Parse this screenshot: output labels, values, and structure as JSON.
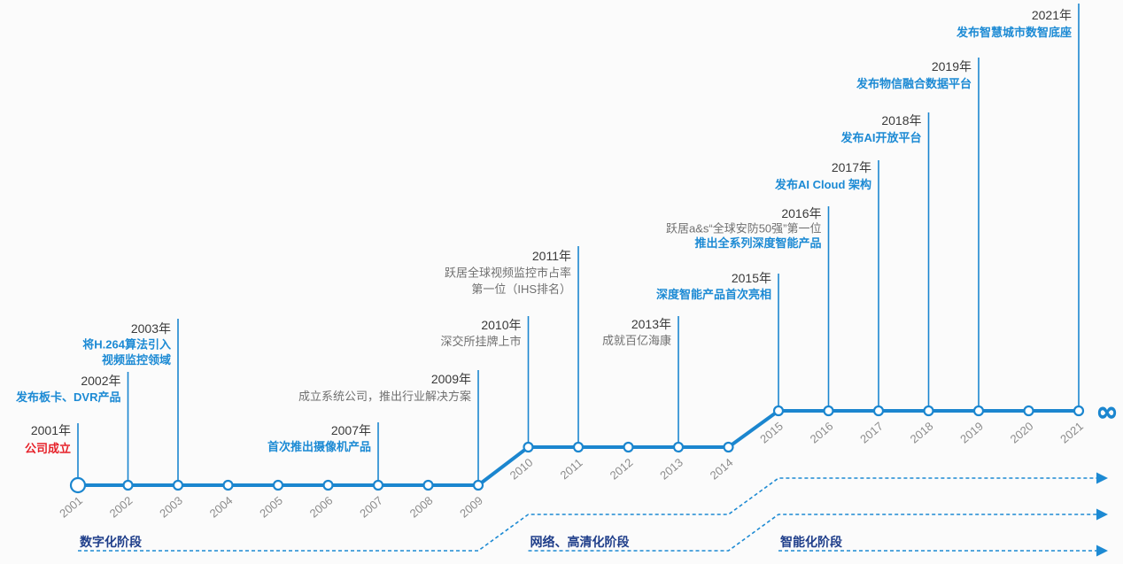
{
  "timeline": {
    "years": [
      "2001",
      "2002",
      "2003",
      "2004",
      "2005",
      "2006",
      "2007",
      "2008",
      "2009",
      "2010",
      "2011",
      "2012",
      "2013",
      "2014",
      "2015",
      "2016",
      "2017",
      "2018",
      "2019",
      "2020",
      "2021"
    ],
    "end_symbol": "∞"
  },
  "phases": [
    {
      "label": "数字化阶段",
      "from": 2001
    },
    {
      "label": "网络、高清化阶段",
      "from": 2010
    },
    {
      "label": "智能化阶段",
      "from": 2015
    }
  ],
  "events": [
    {
      "title": "2001年",
      "lines": [
        {
          "text": "公司成立",
          "color": "#e62129",
          "bold": true
        }
      ]
    },
    {
      "title": "2002年",
      "lines": [
        {
          "text": "发布板卡、DVR产品",
          "color": "#1c8ad4",
          "bold": true
        }
      ]
    },
    {
      "title": "2003年",
      "lines": [
        {
          "text": "将H.264算法引入",
          "color": "#1c8ad4",
          "bold": true
        },
        {
          "text": "视频监控领域",
          "color": "#1c8ad4",
          "bold": true
        }
      ]
    },
    {
      "title": "2007年",
      "lines": [
        {
          "text": "首次推出摄像机产品",
          "color": "#1c8ad4",
          "bold": true
        }
      ]
    },
    {
      "title": "2009年",
      "lines": [
        {
          "text": "成立系统公司，推出行业解决方案",
          "color": "#707070",
          "bold": false
        }
      ]
    },
    {
      "title": "2010年",
      "lines": [
        {
          "text": "深交所挂牌上市",
          "color": "#707070",
          "bold": false
        }
      ]
    },
    {
      "title": "2011年",
      "lines": [
        {
          "text": "跃居全球视频监控市占率",
          "color": "#707070",
          "bold": false
        },
        {
          "text": "第一位（IHS排名）",
          "color": "#707070",
          "bold": false
        }
      ]
    },
    {
      "title": "2013年",
      "lines": [
        {
          "text": "成就百亿海康",
          "color": "#707070",
          "bold": false
        }
      ]
    },
    {
      "title": "2015年",
      "lines": [
        {
          "text": "深度智能产品首次亮相",
          "color": "#1c8ad4",
          "bold": true
        }
      ]
    },
    {
      "title": "2016年",
      "lines": [
        {
          "text": "跃居a&s“全球安防50强”第一位",
          "color": "#707070",
          "bold": false
        },
        {
          "text": "推出全系列深度智能产品",
          "color": "#1c8ad4",
          "bold": true
        }
      ]
    },
    {
      "title": "2017年",
      "lines": [
        {
          "text": "发布AI Cloud 架构",
          "color": "#1c8ad4",
          "bold": true
        }
      ]
    },
    {
      "title": "2018年",
      "lines": [
        {
          "text": "发布AI开放平台",
          "color": "#1c8ad4",
          "bold": true
        }
      ]
    },
    {
      "title": "2019年",
      "lines": [
        {
          "text": "发布物信融合数据平台",
          "color": "#1c8ad4",
          "bold": true
        }
      ]
    },
    {
      "title": "2021年",
      "lines": [
        {
          "text": "发布智慧城市数智底座",
          "color": "#1c8ad4",
          "bold": true
        }
      ]
    }
  ],
  "colors": {
    "timeline": "#1b86cf",
    "track": "#1d8ad3",
    "node_fill": "#ffffff",
    "year_axis": "#8c8c8c",
    "event_title": "#3a3a3a",
    "phase_label": "#1f3e8a",
    "background": "#fbfbfb"
  }
}
